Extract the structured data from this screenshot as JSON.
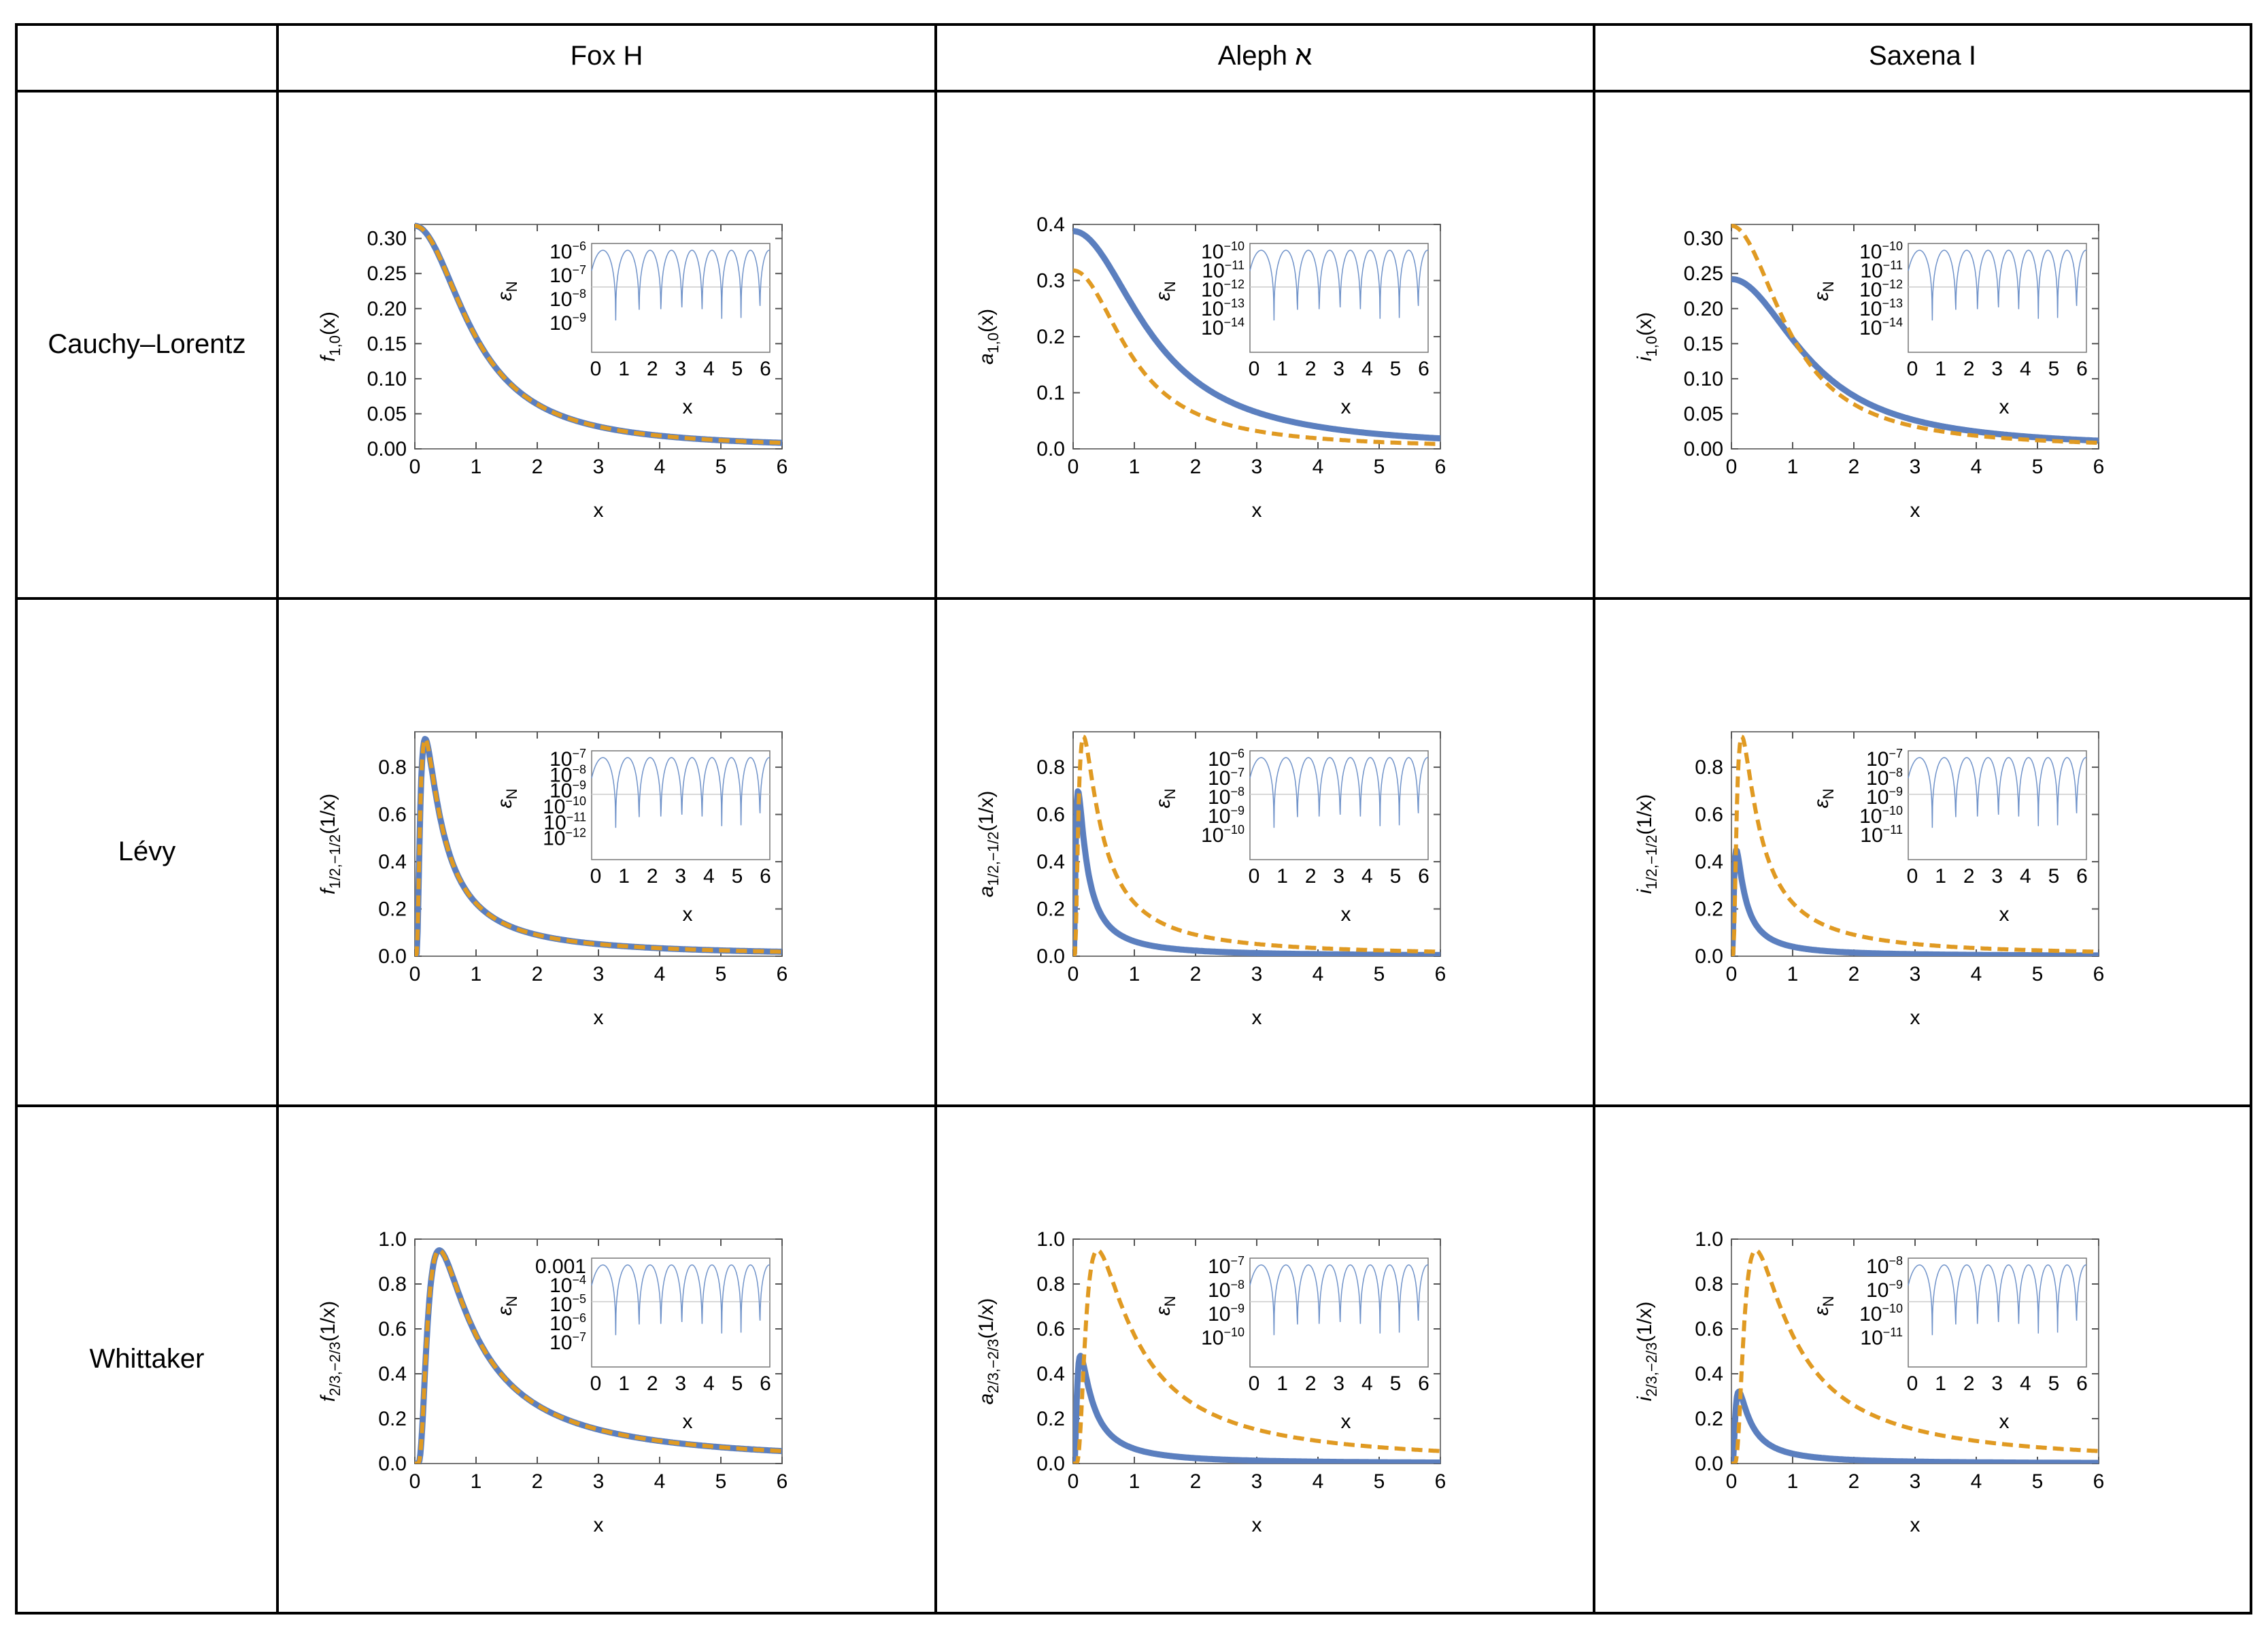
{
  "table": {
    "headers": [
      "",
      "Fox H",
      "Aleph א",
      "Saxena I"
    ],
    "rows": [
      "Cauchy–Lorentz",
      "Lévy",
      "Whittaker"
    ]
  },
  "colors": {
    "solid": "#5b7fbf",
    "dashed": "#e09a22",
    "inset": "#6f92c9",
    "frame": "#777777",
    "grid": "#cccccc"
  },
  "chart_data": [
    {
      "id": "r0c0",
      "type": "line",
      "row": "Cauchy–Lorentz",
      "column": "Fox H",
      "ylabel_main": "f",
      "ylabel_sub": "1,0",
      "ylabel_arg": "(x)",
      "xlabel": "x",
      "xlim": [
        0,
        6
      ],
      "ylim": [
        0,
        0.32
      ],
      "xticks": [
        0,
        1,
        2,
        3,
        4,
        5,
        6
      ],
      "xtick_labels": [
        "0",
        "1",
        "2",
        "3",
        "4",
        "5",
        "6"
      ],
      "yticks": [
        0,
        0.05,
        0.1,
        0.15,
        0.2,
        0.25,
        0.3
      ],
      "ytick_labels": [
        "0.00",
        "0.05",
        "0.10",
        "0.15",
        "0.20",
        "0.25",
        "0.30"
      ],
      "series": [
        {
          "name": "solid",
          "style": "solid",
          "peak": 0.318
        },
        {
          "name": "dashed",
          "style": "dashed",
          "peak": 0.318
        }
      ],
      "inset": {
        "xlabel": "x",
        "ylabel": "ε",
        "ylabel_sub": "N",
        "xticks": [
          "0",
          "1",
          "2",
          "3",
          "4",
          "5",
          "6"
        ],
        "yexps": [
          "-6",
          "-7",
          "-8",
          "-9"
        ],
        "ybase": "10"
      }
    },
    {
      "id": "r0c1",
      "type": "line",
      "row": "Cauchy–Lorentz",
      "column": "Aleph א",
      "ylabel_main": "a",
      "ylabel_sub": "1,0",
      "ylabel_arg": "(x)",
      "xlabel": "x",
      "xlim": [
        0,
        6
      ],
      "ylim": [
        0,
        0.4
      ],
      "xticks": [
        0,
        1,
        2,
        3,
        4,
        5,
        6
      ],
      "xtick_labels": [
        "0",
        "1",
        "2",
        "3",
        "4",
        "5",
        "6"
      ],
      "yticks": [
        0,
        0.1,
        0.2,
        0.3,
        0.4
      ],
      "ytick_labels": [
        "0.0",
        "0.1",
        "0.2",
        "0.3",
        "0.4"
      ],
      "series": [
        {
          "name": "solid",
          "style": "solid",
          "peak": 0.388
        },
        {
          "name": "dashed",
          "style": "dashed",
          "peak": 0.318
        }
      ],
      "inset": {
        "xlabel": "x",
        "ylabel": "ε",
        "ylabel_sub": "N",
        "xticks": [
          "0",
          "1",
          "2",
          "3",
          "4",
          "5",
          "6"
        ],
        "yexps": [
          "-10",
          "-11",
          "-12",
          "-13",
          "-14"
        ],
        "ybase": "10"
      }
    },
    {
      "id": "r0c2",
      "type": "line",
      "row": "Cauchy–Lorentz",
      "column": "Saxena I",
      "ylabel_main": "i",
      "ylabel_sub": "1,0",
      "ylabel_arg": "(x)",
      "xlabel": "x",
      "xlim": [
        0,
        6
      ],
      "ylim": [
        0,
        0.32
      ],
      "xticks": [
        0,
        1,
        2,
        3,
        4,
        5,
        6
      ],
      "xtick_labels": [
        "0",
        "1",
        "2",
        "3",
        "4",
        "5",
        "6"
      ],
      "yticks": [
        0,
        0.05,
        0.1,
        0.15,
        0.2,
        0.25,
        0.3
      ],
      "ytick_labels": [
        "0.00",
        "0.05",
        "0.10",
        "0.15",
        "0.20",
        "0.25",
        "0.30"
      ],
      "series": [
        {
          "name": "solid",
          "style": "solid",
          "peak": 0.242
        },
        {
          "name": "dashed",
          "style": "dashed",
          "peak": 0.318
        }
      ],
      "inset": {
        "xlabel": "x",
        "ylabel": "ε",
        "ylabel_sub": "N",
        "xticks": [
          "0",
          "1",
          "2",
          "3",
          "4",
          "5",
          "6"
        ],
        "yexps": [
          "-10",
          "-11",
          "-12",
          "-13",
          "-14"
        ],
        "ybase": "10"
      }
    },
    {
      "id": "r1c0",
      "type": "line",
      "row": "Lévy",
      "column": "Fox H",
      "ylabel_main": "f",
      "ylabel_sub": "1/2,−1/2",
      "ylabel_arg": "(1/x)",
      "xlabel": "x",
      "xlim": [
        0,
        6
      ],
      "ylim": [
        0,
        0.95
      ],
      "xticks": [
        0,
        1,
        2,
        3,
        4,
        5,
        6
      ],
      "xtick_labels": [
        "0",
        "1",
        "2",
        "3",
        "4",
        "5",
        "6"
      ],
      "yticks": [
        0,
        0.2,
        0.4,
        0.6,
        0.8
      ],
      "ytick_labels": [
        "0.0",
        "0.2",
        "0.4",
        "0.6",
        "0.8"
      ],
      "series": [
        {
          "name": "solid",
          "style": "solid",
          "peak": 0.92
        },
        {
          "name": "dashed",
          "style": "dashed",
          "peak": 0.92
        }
      ],
      "inset": {
        "xlabel": "x",
        "ylabel": "ε",
        "ylabel_sub": "N",
        "xticks": [
          "0",
          "1",
          "2",
          "3",
          "4",
          "5",
          "6"
        ],
        "yexps": [
          "-7",
          "-8",
          "-9",
          "-10",
          "-11",
          "-12"
        ],
        "ybase": "10"
      }
    },
    {
      "id": "r1c1",
      "type": "line",
      "row": "Lévy",
      "column": "Aleph א",
      "ylabel_main": "a",
      "ylabel_sub": "1/2,−1/2",
      "ylabel_arg": "(1/x)",
      "xlabel": "x",
      "xlim": [
        0,
        6
      ],
      "ylim": [
        0,
        0.95
      ],
      "xticks": [
        0,
        1,
        2,
        3,
        4,
        5,
        6
      ],
      "xtick_labels": [
        "0",
        "1",
        "2",
        "3",
        "4",
        "5",
        "6"
      ],
      "yticks": [
        0,
        0.2,
        0.4,
        0.6,
        0.8
      ],
      "ytick_labels": [
        "0.0",
        "0.2",
        "0.4",
        "0.6",
        "0.8"
      ],
      "series": [
        {
          "name": "solid",
          "style": "solid",
          "peak": 0.7
        },
        {
          "name": "dashed",
          "style": "dashed",
          "peak": 0.93
        }
      ],
      "inset": {
        "xlabel": "x",
        "ylabel": "ε",
        "ylabel_sub": "N",
        "xticks": [
          "0",
          "1",
          "2",
          "3",
          "4",
          "5",
          "6"
        ],
        "yexps": [
          "-6",
          "-7",
          "-8",
          "-9",
          "-10"
        ],
        "ybase": "10"
      }
    },
    {
      "id": "r1c2",
      "type": "line",
      "row": "Lévy",
      "column": "Saxena I",
      "ylabel_main": "i",
      "ylabel_sub": "1/2,−1/2",
      "ylabel_arg": "(1/x)",
      "xlabel": "x",
      "xlim": [
        0,
        6
      ],
      "ylim": [
        0,
        0.95
      ],
      "xticks": [
        0,
        1,
        2,
        3,
        4,
        5,
        6
      ],
      "xtick_labels": [
        "0",
        "1",
        "2",
        "3",
        "4",
        "5",
        "6"
      ],
      "yticks": [
        0,
        0.2,
        0.4,
        0.6,
        0.8
      ],
      "ytick_labels": [
        "0.0",
        "0.2",
        "0.4",
        "0.6",
        "0.8"
      ],
      "series": [
        {
          "name": "solid",
          "style": "solid",
          "peak": 0.45
        },
        {
          "name": "dashed",
          "style": "dashed",
          "peak": 0.93
        }
      ],
      "inset": {
        "xlabel": "x",
        "ylabel": "ε",
        "ylabel_sub": "N",
        "xticks": [
          "0",
          "1",
          "2",
          "3",
          "4",
          "5",
          "6"
        ],
        "yexps": [
          "-7",
          "-8",
          "-9",
          "-10",
          "-11"
        ],
        "ybase": "10"
      }
    },
    {
      "id": "r2c0",
      "type": "line",
      "row": "Whittaker",
      "column": "Fox H",
      "ylabel_main": "f",
      "ylabel_sub": "2/3,−2/3",
      "ylabel_arg": "(1/x)",
      "xlabel": "x",
      "xlim": [
        0,
        6
      ],
      "ylim": [
        0,
        1.0
      ],
      "xticks": [
        0,
        1,
        2,
        3,
        4,
        5,
        6
      ],
      "xtick_labels": [
        "0",
        "1",
        "2",
        "3",
        "4",
        "5",
        "6"
      ],
      "yticks": [
        0,
        0.2,
        0.4,
        0.6,
        0.8,
        1.0
      ],
      "ytick_labels": [
        "0.0",
        "0.2",
        "0.4",
        "0.6",
        "0.8",
        "1.0"
      ],
      "series": [
        {
          "name": "solid",
          "style": "solid",
          "peak": 0.95
        },
        {
          "name": "dashed",
          "style": "dashed",
          "peak": 0.95
        }
      ],
      "inset": {
        "xlabel": "x",
        "ylabel": "ε",
        "ylabel_sub": "N",
        "xticks": [
          "0",
          "1",
          "2",
          "3",
          "4",
          "5",
          "6"
        ],
        "yexps": [
          "0.001",
          "-4",
          "-5",
          "-6",
          "-7"
        ],
        "ybase": "10"
      }
    },
    {
      "id": "r2c1",
      "type": "line",
      "row": "Whittaker",
      "column": "Aleph א",
      "ylabel_main": "a",
      "ylabel_sub": "2/3,−2/3",
      "ylabel_arg": "(1/x)",
      "xlabel": "x",
      "xlim": [
        0,
        6
      ],
      "ylim": [
        0,
        1.0
      ],
      "xticks": [
        0,
        1,
        2,
        3,
        4,
        5,
        6
      ],
      "xtick_labels": [
        "0",
        "1",
        "2",
        "3",
        "4",
        "5",
        "6"
      ],
      "yticks": [
        0,
        0.2,
        0.4,
        0.6,
        0.8,
        1.0
      ],
      "ytick_labels": [
        "0.0",
        "0.2",
        "0.4",
        "0.6",
        "0.8",
        "1.0"
      ],
      "series": [
        {
          "name": "solid",
          "style": "solid",
          "peak": 0.48
        },
        {
          "name": "dashed",
          "style": "dashed",
          "peak": 0.95
        }
      ],
      "inset": {
        "xlabel": "x",
        "ylabel": "ε",
        "ylabel_sub": "N",
        "xticks": [
          "0",
          "1",
          "2",
          "3",
          "4",
          "5",
          "6"
        ],
        "yexps": [
          "-7",
          "-8",
          "-9",
          "-10"
        ],
        "ybase": "10"
      }
    },
    {
      "id": "r2c2",
      "type": "line",
      "row": "Whittaker",
      "column": "Saxena I",
      "ylabel_main": "i",
      "ylabel_sub": "2/3,−2/3",
      "ylabel_arg": "(1/x)",
      "xlabel": "x",
      "xlim": [
        0,
        6
      ],
      "ylim": [
        0,
        1.0
      ],
      "xticks": [
        0,
        1,
        2,
        3,
        4,
        5,
        6
      ],
      "xtick_labels": [
        "0",
        "1",
        "2",
        "3",
        "4",
        "5",
        "6"
      ],
      "yticks": [
        0,
        0.2,
        0.4,
        0.6,
        0.8,
        1.0
      ],
      "ytick_labels": [
        "0.0",
        "0.2",
        "0.4",
        "0.6",
        "0.8",
        "1.0"
      ],
      "series": [
        {
          "name": "solid",
          "style": "solid",
          "peak": 0.32
        },
        {
          "name": "dashed",
          "style": "dashed",
          "peak": 0.95
        }
      ],
      "inset": {
        "xlabel": "x",
        "ylabel": "ε",
        "ylabel_sub": "N",
        "xticks": [
          "0",
          "1",
          "2",
          "3",
          "4",
          "5",
          "6"
        ],
        "yexps": [
          "-8",
          "-9",
          "-10",
          "-11"
        ],
        "ybase": "10"
      }
    }
  ]
}
